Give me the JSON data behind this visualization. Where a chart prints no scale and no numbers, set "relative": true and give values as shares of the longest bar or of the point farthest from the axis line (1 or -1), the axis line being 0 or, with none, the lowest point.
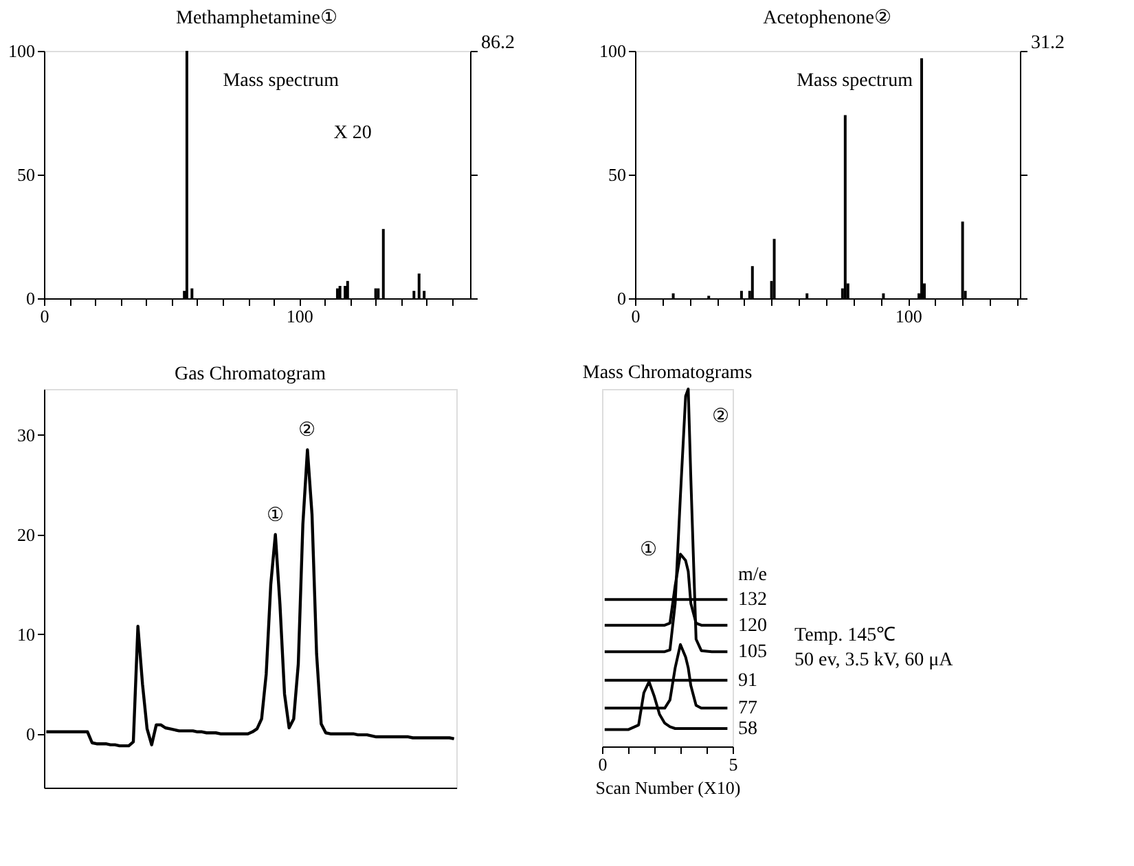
{
  "chart_data": [
    {
      "type": "bar",
      "title": "Methamphetamine①",
      "color": "#000000",
      "x": [
        55,
        56,
        58,
        115,
        116,
        118,
        119,
        130,
        131,
        133,
        145,
        147,
        149
      ],
      "values": [
        3,
        100,
        4,
        4,
        5,
        5,
        7,
        4,
        4,
        28,
        3,
        10,
        3
      ],
      "xlim": [
        0,
        167
      ],
      "xticks": [
        0,
        {
          "value": 10,
          "label": null
        },
        {
          "value": 20,
          "label": null
        },
        {
          "value": 30,
          "label": null
        },
        {
          "value": 40,
          "label": null
        },
        {
          "value": 50,
          "label": null
        },
        {
          "value": 60,
          "label": null
        },
        {
          "value": 70,
          "label": null
        },
        {
          "value": 80,
          "label": null
        },
        {
          "value": 90,
          "label": null
        },
        100,
        {
          "value": 110,
          "label": null
        },
        {
          "value": 120,
          "label": null
        },
        {
          "value": 130,
          "label": null
        },
        {
          "value": 140,
          "label": null
        },
        {
          "value": 150,
          "label": null
        },
        {
          "value": 160,
          "label": null
        }
      ],
      "ylim": [
        0,
        100
      ],
      "yticks": [
        0,
        50,
        100
      ],
      "annotations": [
        "Mass spectrum",
        "X  20",
        "86.2"
      ]
    },
    {
      "type": "bar",
      "title": "Acetophenone②",
      "color": "#000000",
      "x": [
        14,
        27,
        39,
        42,
        43,
        50,
        51,
        63,
        76,
        77,
        78,
        91,
        104,
        105,
        106,
        120,
        121
      ],
      "values": [
        2,
        1,
        3,
        3,
        13,
        7,
        24,
        2,
        4,
        74,
        6,
        2,
        2,
        97,
        6,
        31,
        3
      ],
      "xlim": [
        0,
        141
      ],
      "xticks": [
        0,
        {
          "value": 10,
          "label": null
        },
        {
          "value": 20,
          "label": null
        },
        {
          "value": 30,
          "label": null
        },
        {
          "value": 40,
          "label": null
        },
        {
          "value": 50,
          "label": null
        },
        {
          "value": 60,
          "label": null
        },
        {
          "value": 70,
          "label": null
        },
        {
          "value": 80,
          "label": null
        },
        {
          "value": 90,
          "label": null
        },
        100,
        {
          "value": 110,
          "label": null
        },
        {
          "value": 120,
          "label": null
        },
        {
          "value": 130,
          "label": null
        },
        {
          "value": 140,
          "label": null
        }
      ],
      "ylim": [
        0,
        100
      ],
      "yticks": [
        0,
        50,
        100
      ],
      "annotations": [
        "Mass spectrum",
        "31.2"
      ]
    },
    {
      "type": "line",
      "title": "Gas Chromatogram",
      "color": "#000000",
      "tick_labels": "y",
      "categories": [
        null,
        null,
        null,
        null,
        null,
        null,
        null,
        null,
        null,
        null,
        null,
        null,
        null,
        null,
        null,
        null,
        null,
        null,
        null,
        null,
        null,
        null,
        null,
        null,
        null,
        null,
        null,
        null,
        null,
        null,
        null,
        null,
        null,
        null,
        null,
        null,
        null,
        null,
        null,
        null,
        null,
        null,
        null,
        null,
        null,
        null,
        null,
        null,
        null,
        null,
        null,
        null,
        null,
        null,
        null,
        null,
        null,
        null,
        null,
        null,
        null,
        null,
        null,
        null,
        null,
        null,
        null,
        null,
        null,
        null,
        null,
        null,
        null,
        null,
        null,
        null,
        null,
        null,
        null,
        null,
        null,
        null,
        null,
        null,
        null,
        null,
        null,
        null,
        null,
        null
      ],
      "values": [
        0.2,
        0.2,
        0.2,
        0.2,
        0.2,
        0.2,
        0.2,
        0.2,
        0.2,
        0.2,
        -0.9,
        -1.0,
        -1.0,
        -1.0,
        -1.1,
        -1.1,
        -1.2,
        -1.2,
        -1.2,
        -0.8,
        10.8,
        5,
        0.5,
        -1.1,
        0.9,
        0.9,
        0.6,
        0.5,
        0.4,
        0.3,
        0.3,
        0.3,
        0.3,
        0.2,
        0.2,
        0.1,
        0.1,
        0.1,
        0,
        0,
        0,
        0,
        0,
        0,
        0,
        0.2,
        0.5,
        1.5,
        6,
        15,
        20,
        13,
        4,
        0.6,
        1.5,
        7,
        21,
        28.5,
        22,
        8,
        1,
        0.1,
        0,
        0,
        0,
        0,
        0,
        0,
        -0.1,
        -0.1,
        -0.1,
        -0.2,
        -0.3,
        -0.3,
        -0.3,
        -0.3,
        -0.3,
        -0.3,
        -0.3,
        -0.3,
        -0.4,
        -0.4,
        -0.4,
        -0.4,
        -0.4,
        -0.4,
        -0.4,
        -0.4,
        -0.4,
        -0.5
      ],
      "ylim": [
        -5.4,
        34.6
      ],
      "yticks": [
        0,
        10,
        20,
        30
      ],
      "annotations": [
        {
          "text": "①",
          "y": 20
        },
        {
          "text": "②",
          "y": 28.5
        }
      ]
    },
    {
      "type": "line",
      "title": "Mass Chromatograms",
      "relative": true,
      "tick_labels": "x",
      "xlabel": "Scan Number (X10)",
      "legend_title": "m/e",
      "x": [
        0.1,
        0.5,
        1.0,
        1.4,
        1.6,
        1.8,
        2.0,
        2.2,
        2.4,
        2.6,
        2.8,
        3.0,
        3.2,
        3.3,
        3.4,
        3.6,
        3.8,
        4.2,
        4.8
      ],
      "xlim": [
        0,
        5
      ],
      "xticks": [
        0,
        {
          "value": 1,
          "label": null
        },
        {
          "value": 2,
          "label": null
        },
        {
          "value": 3,
          "label": null
        },
        {
          "value": 4,
          "label": null
        },
        5
      ],
      "series": [
        {
          "name": "132",
          "color": "#000000",
          "values": [
            0.411,
            0.411,
            0.411,
            0.411,
            0.411,
            0.411,
            0.411,
            0.411,
            0.411,
            0.411,
            0.411,
            0.411,
            0.411,
            0.411,
            0.411,
            0.411,
            0.411,
            0.411,
            0.411
          ]
        },
        {
          "name": "120",
          "color": "#000000",
          "values": [
            0.339,
            0.339,
            0.339,
            0.339,
            0.339,
            0.339,
            0.339,
            0.339,
            0.339,
            0.345,
            0.45,
            0.538,
            0.52,
            0.49,
            0.4,
            0.345,
            0.339,
            0.339,
            0.339
          ]
        },
        {
          "name": "105",
          "color": "#000000",
          "values": [
            0.265,
            0.265,
            0.265,
            0.265,
            0.265,
            0.265,
            0.265,
            0.265,
            0.265,
            0.27,
            0.4,
            0.7,
            0.98,
            1.0,
            0.75,
            0.3,
            0.268,
            0.265,
            0.265
          ]
        },
        {
          "name": "91",
          "color": "#000000",
          "values": [
            0.185,
            0.185,
            0.185,
            0.185,
            0.185,
            0.185,
            0.185,
            0.185,
            0.185,
            0.185,
            0.185,
            0.185,
            0.185,
            0.185,
            0.185,
            0.185,
            0.185,
            0.185,
            0.185
          ]
        },
        {
          "name": "77",
          "color": "#000000",
          "values": [
            0.107,
            0.107,
            0.107,
            0.107,
            0.107,
            0.107,
            0.107,
            0.107,
            0.107,
            0.13,
            0.22,
            0.285,
            0.25,
            0.22,
            0.17,
            0.115,
            0.107,
            0.107,
            0.107
          ]
        },
        {
          "name": "58",
          "color": "#000000",
          "values": [
            0.047,
            0.047,
            0.047,
            0.06,
            0.15,
            0.181,
            0.14,
            0.09,
            0.065,
            0.055,
            0.05,
            0.05,
            0.05,
            0.05,
            0.05,
            0.05,
            0.05,
            0.05,
            0.05
          ]
        }
      ],
      "annotations": [
        "①",
        {
          "text": "②",
          "x": 3.3,
          "y": 1.0
        },
        "Temp. 145℃",
        "50 ev, 3.5 kV, 60 μA"
      ]
    }
  ]
}
